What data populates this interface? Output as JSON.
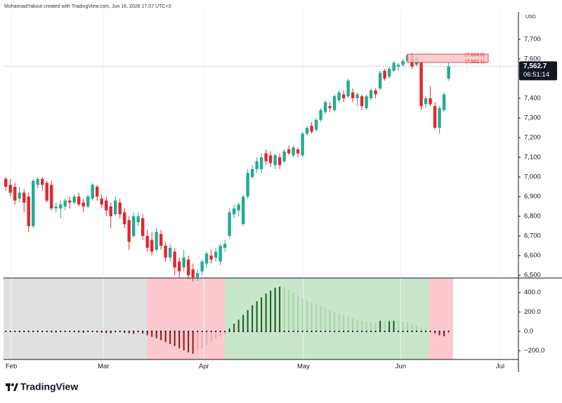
{
  "header": "MohannadYakout created with TradingView.com, Jun 16, 2026 17:07 UTC+3",
  "currency": "USD",
  "brand": "TradingView",
  "chart_data": [
    {
      "type": "candlestick",
      "up_color": "#22ab94",
      "down_color": "#e3262e",
      "xlim": [
        -0.5,
        112.3
      ],
      "xticks": [
        {
          "value": 1.2,
          "label": "Feb"
        },
        {
          "value": 21.4,
          "label": "Mar"
        },
        {
          "value": 43.4,
          "label": "Apr"
        },
        {
          "value": 65.2,
          "label": "May"
        },
        {
          "value": 86.5,
          "label": "Jun"
        },
        {
          "value": 108.3,
          "label": "Jul"
        }
      ],
      "ylim": [
        6486,
        7839
      ],
      "yticks": [
        {
          "value": 6500,
          "label": "6,500"
        },
        {
          "value": 6600,
          "label": "6,600"
        },
        {
          "value": 6700,
          "label": "6,700"
        },
        {
          "value": 6800,
          "label": "6,800"
        },
        {
          "value": 6900,
          "label": "6,900"
        },
        {
          "value": 7000,
          "label": "7,000"
        },
        {
          "value": 7100,
          "label": "7,100"
        },
        {
          "value": 7200,
          "label": "7,200"
        },
        {
          "value": 7300,
          "label": "7,300"
        },
        {
          "value": 7400,
          "label": "7,400"
        },
        {
          "value": 7600,
          "label": "7,600"
        },
        {
          "value": 7700,
          "label": "7,700"
        }
      ],
      "open": [
        6990,
        6960,
        6950,
        6890,
        6920,
        6900,
        6750,
        6960,
        6990,
        6970,
        6960,
        6840,
        6840,
        6850,
        6880,
        6870,
        6900,
        6870,
        6850,
        6890,
        6950,
        6890,
        6880,
        6850,
        6810,
        6870,
        6820,
        6780,
        6700,
        6770,
        6790,
        6700,
        6680,
        6630,
        6710,
        6650,
        6590,
        6620,
        6570,
        6540,
        6580,
        6530,
        6490,
        6520,
        6560,
        6600,
        6590,
        6570,
        6640,
        6700,
        6810,
        6830,
        6760,
        6900,
        7000,
        7040,
        7040,
        7120,
        7110,
        7060,
        7100,
        7080,
        7140,
        7110,
        7140,
        7110,
        7220,
        7260,
        7240,
        7290,
        7330,
        7360,
        7340,
        7390,
        7420,
        7410,
        7430,
        7400,
        7410,
        7350,
        7400,
        7440,
        7450,
        7540,
        7510,
        7540,
        7560,
        7570,
        7590,
        7620,
        7570,
        7580,
        7370,
        7400,
        7360,
        7250,
        7340,
        7500
      ],
      "high": [
        7000,
        6990,
        6970,
        6950,
        6940,
        6920,
        6990,
        7000,
        7000,
        6980,
        6980,
        6870,
        6880,
        6890,
        6900,
        6910,
        6920,
        6890,
        6910,
        6970,
        6960,
        6910,
        6900,
        6870,
        6900,
        6890,
        6840,
        6800,
        6820,
        6820,
        6810,
        6730,
        6720,
        6740,
        6730,
        6670,
        6660,
        6640,
        6590,
        6630,
        6600,
        6560,
        6530,
        6580,
        6620,
        6630,
        6640,
        6660,
        6680,
        6840,
        6860,
        6870,
        6910,
        7040,
        7060,
        7100,
        7120,
        7140,
        7130,
        7120,
        7120,
        7140,
        7160,
        7160,
        7150,
        7230,
        7260,
        7280,
        7300,
        7350,
        7390,
        7380,
        7420,
        7440,
        7440,
        7500,
        7450,
        7430,
        7420,
        7420,
        7450,
        7450,
        7540,
        7550,
        7560,
        7590,
        7580,
        7600,
        7625,
        7630,
        7620,
        7590,
        7410,
        7460,
        7380,
        7360,
        7430,
        7580
      ],
      "low": [
        6930,
        6900,
        6860,
        6870,
        6820,
        6720,
        6740,
        6940,
        6930,
        6870,
        6830,
        6820,
        6790,
        6830,
        6840,
        6860,
        6850,
        6820,
        6840,
        6880,
        6880,
        6840,
        6800,
        6740,
        6800,
        6790,
        6740,
        6630,
        6690,
        6750,
        6680,
        6620,
        6600,
        6620,
        6630,
        6570,
        6570,
        6500,
        6490,
        6520,
        6480,
        6470,
        6470,
        6500,
        6540,
        6560,
        6570,
        6550,
        6620,
        6690,
        6790,
        6800,
        6750,
        6890,
        6990,
        7020,
        7020,
        7060,
        7050,
        7040,
        7040,
        7070,
        7110,
        7100,
        7100,
        7100,
        7210,
        7220,
        7230,
        7280,
        7320,
        7330,
        7330,
        7380,
        7380,
        7400,
        7380,
        7360,
        7340,
        7340,
        7390,
        7400,
        7440,
        7490,
        7500,
        7530,
        7540,
        7560,
        7580,
        7550,
        7560,
        7340,
        7350,
        7360,
        7240,
        7220,
        7330,
        7490
      ],
      "close": [
        6950,
        6920,
        6880,
        6920,
        6870,
        6750,
        6980,
        6990,
        6960,
        6880,
        6840,
        6850,
        6860,
        6880,
        6870,
        6900,
        6860,
        6850,
        6900,
        6960,
        6900,
        6860,
        6830,
        6800,
        6880,
        6810,
        6760,
        6670,
        6800,
        6800,
        6700,
        6640,
        6620,
        6720,
        6650,
        6590,
        6640,
        6540,
        6520,
        6590,
        6500,
        6490,
        6510,
        6570,
        6610,
        6580,
        6620,
        6650,
        6660,
        6820,
        6840,
        6860,
        6900,
        7020,
        7040,
        7080,
        7100,
        7080,
        7070,
        7110,
        7060,
        7130,
        7120,
        7150,
        7120,
        7220,
        7250,
        7230,
        7290,
        7340,
        7380,
        7350,
        7410,
        7430,
        7400,
        7490,
        7400,
        7420,
        7360,
        7410,
        7440,
        7420,
        7530,
        7500,
        7550,
        7580,
        7570,
        7590,
        7620,
        7560,
        7610,
        7360,
        7400,
        7370,
        7250,
        7350,
        7420,
        7562.7
      ],
      "last_label": "7,562.7",
      "countdown": "06:51:14",
      "levels": [
        {
          "value": 7624.6,
          "label": "(7,624.6)"
        },
        {
          "value": 7582.1,
          "label": "(7,582.1)"
        }
      ],
      "level_color": "#f7c5c9"
    },
    {
      "type": "histogram",
      "ylim": [
        -289,
        549
      ],
      "yticks": [
        {
          "value": 400,
          "label": "400.0"
        },
        {
          "value": 200,
          "label": "200.0"
        },
        {
          "value": 0,
          "label": "0.0"
        },
        {
          "value": -200,
          "label": "−200.0"
        }
      ],
      "colors": {
        "pos_rising": "#1b5e20",
        "pos_falling": "#a5d6a7",
        "neg_falling": "#8b1a1a",
        "neg_rising": "#f1a7ad"
      },
      "values": [
        5,
        3,
        -5,
        -8,
        -3,
        2,
        6,
        8,
        4,
        -6,
        -10,
        -12,
        -8,
        -5,
        -3,
        -2,
        -10,
        -14,
        -8,
        -4,
        -10,
        -14,
        -18,
        -20,
        -16,
        -12,
        -15,
        -20,
        -25,
        -18,
        -22,
        -40,
        -55,
        -70,
        -90,
        -110,
        -130,
        -150,
        -175,
        -195,
        -215,
        -230,
        -200,
        -170,
        -140,
        -110,
        -80,
        -55,
        -30,
        30,
        80,
        120,
        170,
        220,
        270,
        310,
        350,
        390,
        420,
        450,
        460,
        455,
        430,
        400,
        370,
        340,
        320,
        300,
        280,
        260,
        240,
        220,
        200,
        180,
        165,
        150,
        135,
        120,
        110,
        100,
        95,
        90,
        110,
        100,
        105,
        110,
        105,
        100,
        95,
        80,
        60,
        40,
        25,
        10,
        -20,
        -40,
        -50,
        -30
      ]
    }
  ]
}
